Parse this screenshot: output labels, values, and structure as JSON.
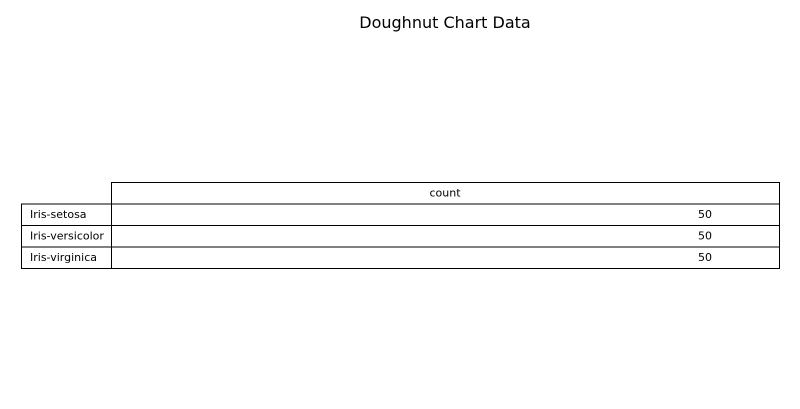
{
  "chart_data": {
    "type": "table",
    "title": "Doughnut Chart Data",
    "columns": [
      "count"
    ],
    "rows": [
      {
        "label": "Iris-setosa",
        "values": [
          "50"
        ]
      },
      {
        "label": "Iris-versicolor",
        "values": [
          "50"
        ]
      },
      {
        "label": "Iris-virginica",
        "values": [
          "50"
        ]
      }
    ]
  }
}
